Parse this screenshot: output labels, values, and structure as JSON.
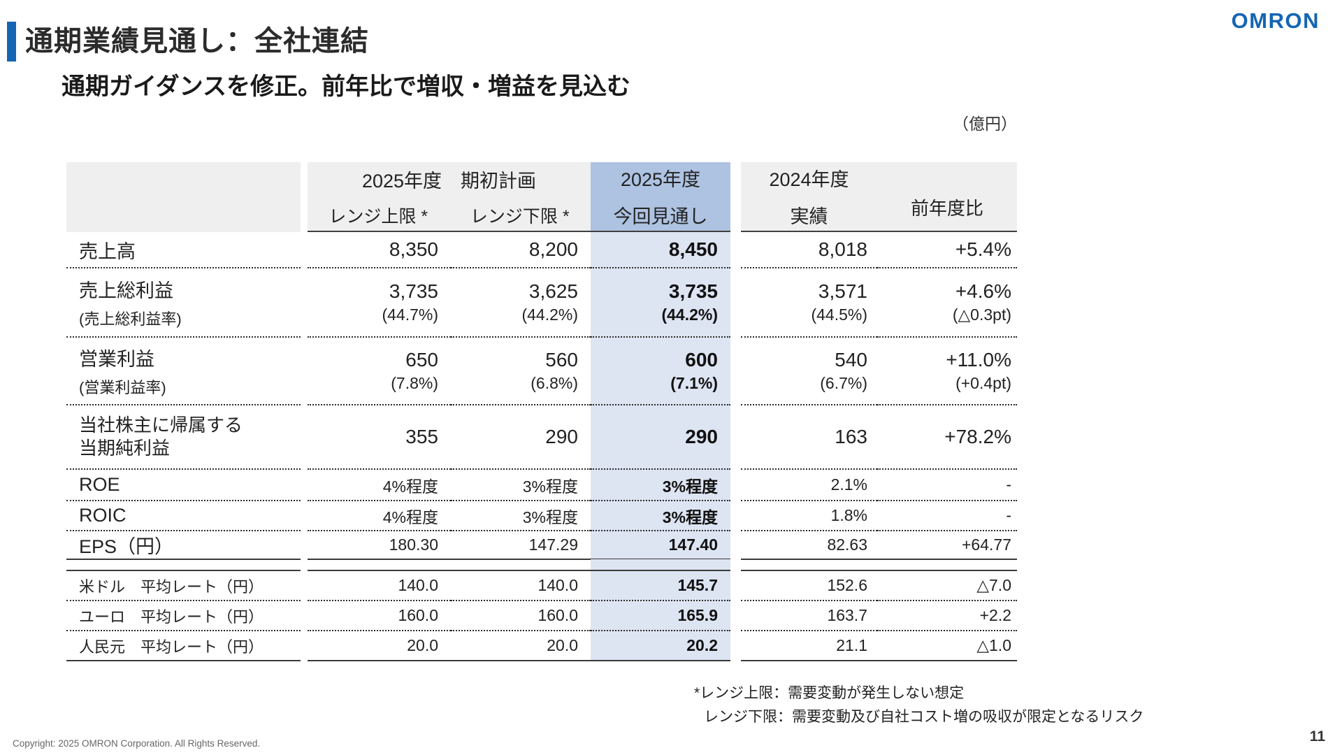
{
  "logo_text": "OMRON",
  "title": "通期業績見通し：全社連結",
  "subtitle": "通期ガイダンスを修正。前年比で増収・増益を見込む",
  "unit_label": "（億円）",
  "table": {
    "header": {
      "initial_plan_title": "2025年度　期初計画",
      "upper_label": "レンジ上限 *",
      "lower_label": "レンジ下限 *",
      "forecast_line1": "2025年度",
      "forecast_line2": "今回見通し",
      "actual_line1": "2024年度",
      "actual_line2": "実績",
      "yoy_label": "前年度比"
    },
    "rows": [
      {
        "label": "売上高",
        "upper": "8,350",
        "lower": "8,200",
        "forecast": "8,450",
        "actual": "8,018",
        "yoy": "+5.4%"
      },
      {
        "label": "売上総利益",
        "label_sub": "(売上総利益率)",
        "upper": "3,735",
        "upper_sub": "(44.7%)",
        "lower": "3,625",
        "lower_sub": "(44.2%)",
        "forecast": "3,735",
        "forecast_sub": "(44.2%)",
        "actual": "3,571",
        "actual_sub": "(44.5%)",
        "yoy": "+4.6%",
        "yoy_sub": "(△0.3pt)"
      },
      {
        "label": "営業利益",
        "label_sub": "(営業利益率)",
        "upper": "650",
        "upper_sub": "(7.8%)",
        "lower": "560",
        "lower_sub": "(6.8%)",
        "forecast": "600",
        "forecast_sub": "(7.1%)",
        "actual": "540",
        "actual_sub": "(6.7%)",
        "yoy": "+11.0%",
        "yoy_sub": "(+0.4pt)"
      },
      {
        "label_line1": "当社株主に帰属する",
        "label_line2": "当期純利益",
        "upper": "355",
        "lower": "290",
        "forecast": "290",
        "actual": "163",
        "yoy": "+78.2%"
      },
      {
        "label": "ROE",
        "upper": "4%程度",
        "lower": "3%程度",
        "forecast": "3%程度",
        "actual": "2.1%",
        "yoy": "-"
      },
      {
        "label": "ROIC",
        "upper": "4%程度",
        "lower": "3%程度",
        "forecast": "3%程度",
        "actual": "1.8%",
        "yoy": "-"
      },
      {
        "label": "EPS（円）",
        "upper": "180.30",
        "lower": "147.29",
        "forecast": "147.40",
        "actual": "82.63",
        "yoy": "+64.77"
      },
      {
        "label": "米ドル　平均レート（円）",
        "upper": "140.0",
        "lower": "140.0",
        "forecast": "145.7",
        "actual": "152.6",
        "yoy": "△7.0"
      },
      {
        "label": "ユーロ　平均レート（円）",
        "upper": "160.0",
        "lower": "160.0",
        "forecast": "165.9",
        "actual": "163.7",
        "yoy": "+2.2"
      },
      {
        "label": "人民元　平均レート（円）",
        "upper": "20.0",
        "lower": "20.0",
        "forecast": "20.2",
        "actual": "21.1",
        "yoy": "△1.0"
      }
    ]
  },
  "footnotes": {
    "line1": "*レンジ上限：需要変動が発生しない想定",
    "line2": "レンジ下限：需要変動及び自社コスト増の吸収が限定となるリスク"
  },
  "footer": {
    "copyright": "Copyright: 2025 OMRON Corporation.  All Rights Reserved.",
    "page_number": "11"
  },
  "colors": {
    "accent_blue": "#1565b3",
    "highlight_header": "#aec3e2",
    "highlight_cell": "#dde4f2",
    "header_gray": "#efefef"
  }
}
